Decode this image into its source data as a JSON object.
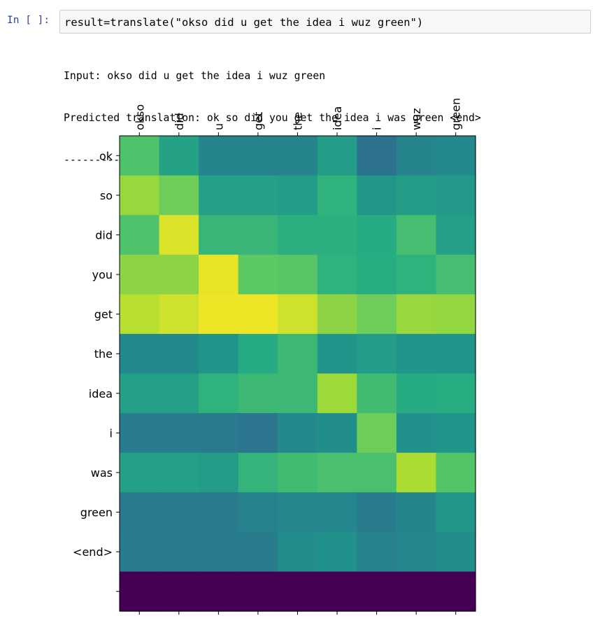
{
  "cell": {
    "prompt": "In [ ]:",
    "code": "result=translate(\"okso did u get the idea i wuz green\")"
  },
  "output": {
    "input_line": "Input: okso did u get the idea i wuz green",
    "prediction_line": "Predicted translation: ok so did you get the idea i was green <end>",
    "separator": "--------------------------------------------------"
  },
  "chart_data": {
    "type": "heatmap",
    "colormap": "viridis",
    "x_labels": [
      "okso",
      "did",
      "u",
      "get",
      "the",
      "idea",
      "i",
      "wuz",
      "green"
    ],
    "y_labels": [
      "ok",
      "so",
      "did",
      "you",
      "get",
      "the",
      "idea",
      "i",
      "was",
      "green",
      "<end>",
      ""
    ],
    "x_label_position": "top",
    "x_label_rotation": 90,
    "values": [
      [
        0.72,
        0.58,
        0.45,
        0.45,
        0.45,
        0.55,
        0.38,
        0.45,
        0.47
      ],
      [
        0.85,
        0.78,
        0.57,
        0.57,
        0.55,
        0.65,
        0.53,
        0.55,
        0.54
      ],
      [
        0.72,
        0.95,
        0.67,
        0.67,
        0.64,
        0.64,
        0.62,
        0.7,
        0.57
      ],
      [
        0.83,
        0.83,
        0.97,
        0.75,
        0.74,
        0.65,
        0.63,
        0.65,
        0.7
      ],
      [
        0.9,
        0.93,
        0.98,
        0.98,
        0.93,
        0.83,
        0.78,
        0.85,
        0.84
      ],
      [
        0.47,
        0.47,
        0.52,
        0.62,
        0.68,
        0.52,
        0.55,
        0.52,
        0.52
      ],
      [
        0.57,
        0.57,
        0.65,
        0.68,
        0.68,
        0.86,
        0.69,
        0.62,
        0.63
      ],
      [
        0.42,
        0.42,
        0.41,
        0.39,
        0.47,
        0.49,
        0.78,
        0.5,
        0.52
      ],
      [
        0.57,
        0.57,
        0.55,
        0.66,
        0.69,
        0.71,
        0.71,
        0.88,
        0.73
      ],
      [
        0.41,
        0.41,
        0.41,
        0.44,
        0.46,
        0.46,
        0.42,
        0.45,
        0.53
      ],
      [
        0.42,
        0.42,
        0.41,
        0.42,
        0.48,
        0.5,
        0.44,
        0.46,
        0.49
      ],
      [
        0.0,
        0.0,
        0.0,
        0.0,
        0.0,
        0.0,
        0.0,
        0.0,
        0.0
      ]
    ]
  }
}
